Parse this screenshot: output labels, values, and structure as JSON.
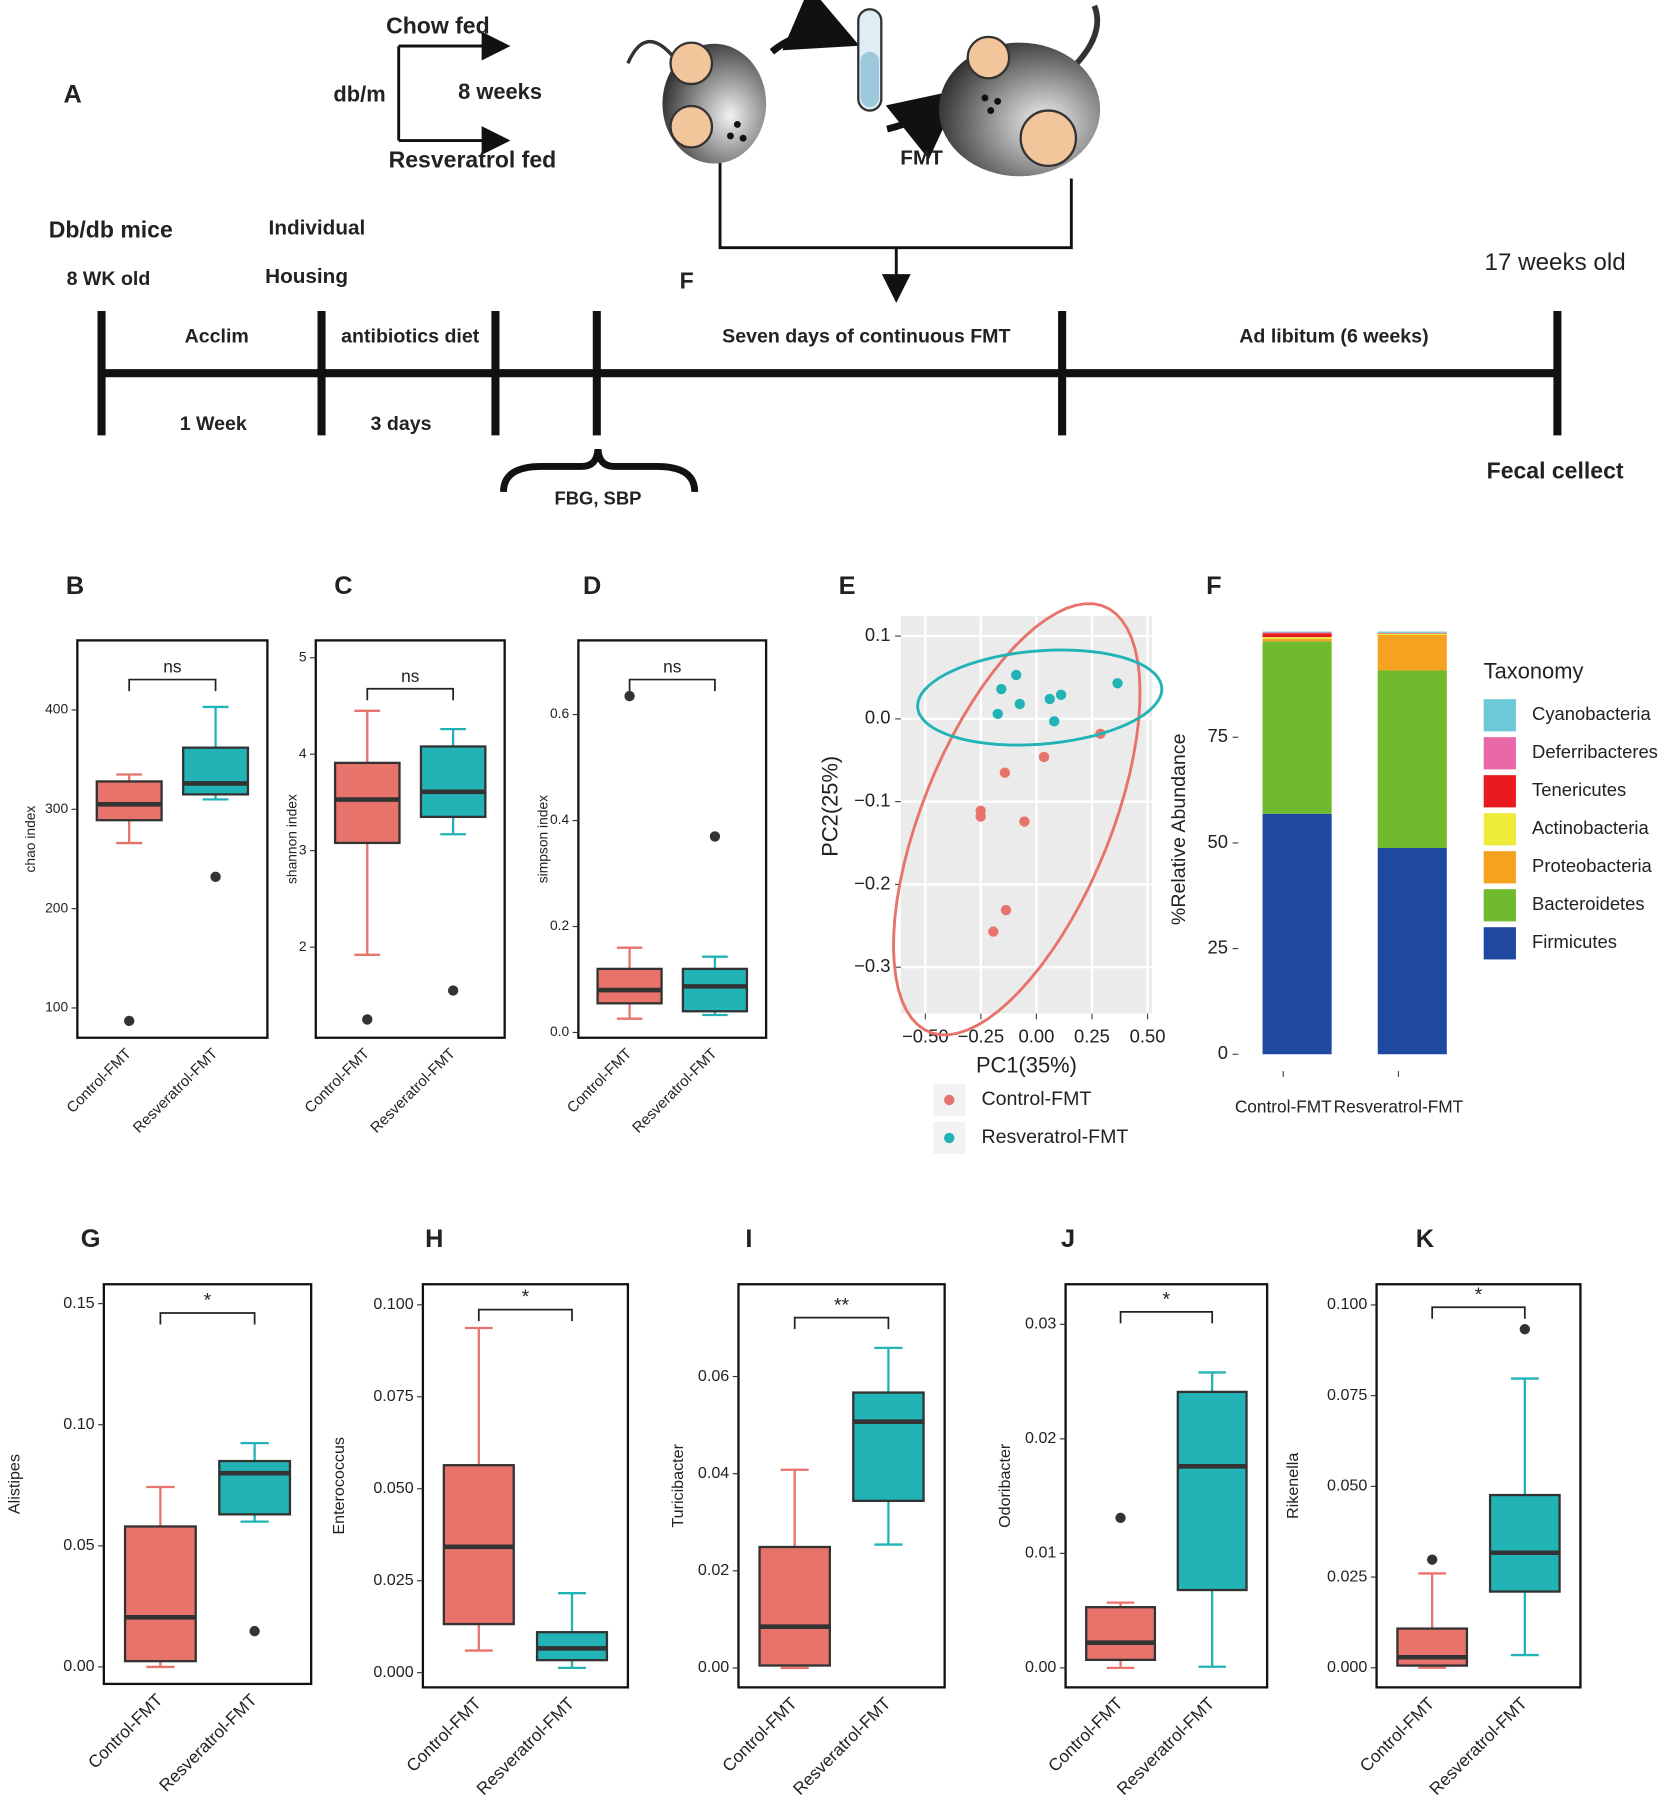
{
  "diagram": {
    "panel": "A",
    "texts": [
      "Chow fed",
      "db/m",
      "8 weeks",
      "Resveratrol fed",
      "FMT",
      "Db/db mice",
      "Individual",
      "8 WK old",
      "Housing",
      "F",
      "17 weeks old",
      "Acclim",
      "antibiotics diet",
      "Seven days of continuous FMT",
      "Ad libitum (6 weeks)",
      "1 Week",
      "3 days",
      "FBG,  SBP",
      "Fecal cellect"
    ]
  },
  "chart_data": [
    {
      "type": "box",
      "panel": "B",
      "ylabel": "chao index",
      "categories": [
        "Control-FMT",
        "Resveratrol-FMT"
      ],
      "colors": [
        "#e8736b",
        "#21b3b6"
      ],
      "boxes": [
        {
          "whislo": 266,
          "q1": 289,
          "med": 305,
          "q3": 328,
          "whishi": 335,
          "fliers": [
            87
          ]
        },
        {
          "whislo": 310,
          "q1": 315,
          "med": 326,
          "q3": 362,
          "whishi": 403,
          "fliers": [
            232
          ]
        }
      ],
      "ylim": [
        70,
        470
      ],
      "yticks": [
        100,
        200,
        300,
        400
      ],
      "annotation": "ns"
    },
    {
      "type": "box",
      "panel": "C",
      "ylabel": "shannon index",
      "categories": [
        "Control-FMT",
        "Resveratrol-FMT"
      ],
      "colors": [
        "#e8736b",
        "#21b3b6"
      ],
      "boxes": [
        {
          "whislo": 1.92,
          "q1": 3.08,
          "med": 3.53,
          "q3": 3.91,
          "whishi": 4.45,
          "fliers": [
            1.25
          ]
        },
        {
          "whislo": 3.17,
          "q1": 3.35,
          "med": 3.61,
          "q3": 4.08,
          "whishi": 4.26,
          "fliers": [
            1.55
          ]
        }
      ],
      "ylim": [
        1.06,
        5.18
      ],
      "yticks": [
        2,
        3,
        4,
        5
      ],
      "annotation": "ns"
    },
    {
      "type": "box",
      "panel": "D",
      "ylabel": "simpson index",
      "categories": [
        "Control-FMT",
        "Resveratrol-FMT"
      ],
      "colors": [
        "#e8736b",
        "#21b3b6"
      ],
      "boxes": [
        {
          "whislo": 0.026,
          "q1": 0.055,
          "med": 0.08,
          "q3": 0.12,
          "whishi": 0.16,
          "fliers": [
            0.635
          ]
        },
        {
          "whislo": 0.033,
          "q1": 0.04,
          "med": 0.087,
          "q3": 0.12,
          "whishi": 0.143,
          "fliers": [
            0.37
          ]
        }
      ],
      "ylim": [
        -0.01,
        0.74
      ],
      "yticks": [
        {
          "value": 0,
          "label": "0.0"
        },
        0.2,
        0.4,
        0.6
      ],
      "annotation": "ns"
    },
    {
      "type": "scatter",
      "panel": "E",
      "xlabel": "PC1(35%)",
      "ylabel": "PC2(25%)",
      "ellipse": true,
      "grid": true,
      "series": [
        {
          "name": "Control-FMT",
          "color": "#e8736b",
          "x": [
            0.288,
            0.034,
            -0.142,
            -0.251,
            -0.251,
            -0.054,
            -0.137,
            -0.194
          ],
          "y": [
            -0.018,
            -0.046,
            -0.065,
            -0.111,
            -0.118,
            -0.124,
            -0.231,
            -0.257
          ]
        },
        {
          "name": "Resveratrol-FMT",
          "color": "#21b3b6",
          "x": [
            -0.158,
            -0.091,
            -0.174,
            -0.075,
            0.06,
            0.111,
            0.08,
            0.365
          ],
          "y": [
            0.036,
            0.053,
            0.006,
            0.018,
            0.024,
            0.029,
            -0.003,
            0.043
          ]
        }
      ],
      "xlim": [
        -0.61,
        0.52
      ],
      "ylim": [
        -0.356,
        0.124
      ],
      "xticks": [
        {
          "value": -0.5,
          "label": "−0.50"
        },
        {
          "value": -0.25,
          "label": "−0.25"
        },
        {
          "value": 0,
          "label": "0.00"
        },
        0.25,
        {
          "value": 0.5,
          "label": "0.50"
        }
      ],
      "yticks": [
        0.1,
        {
          "value": 0,
          "label": "0.0"
        },
        {
          "value": -0.1,
          "label": "−0.1"
        },
        {
          "value": -0.2,
          "label": "−0.2"
        },
        {
          "value": -0.3,
          "label": "−0.3"
        }
      ]
    },
    {
      "type": "stacked_bar",
      "panel": "F",
      "ylabel": "%Relative Abundance",
      "legend_title": "Taxonomy",
      "categories": [
        "Control-FMT",
        "Resveratrol-FMT"
      ],
      "series": [
        {
          "name": "Firmicutes",
          "color": "#1f49a0",
          "values": [
            56.9,
            48.8
          ]
        },
        {
          "name": "Bacteroidetes",
          "color": "#6fbb2d",
          "values": [
            40.8,
            42.0
          ]
        },
        {
          "name": "Proteobacteria",
          "color": "#f4a21f",
          "values": [
            0.6,
            8.4
          ]
        },
        {
          "name": "Actinobacteria",
          "color": "#eeeb3a",
          "values": [
            0.4,
            0.3
          ]
        },
        {
          "name": "Tenericutes",
          "color": "#e8191f",
          "values": [
            0.9,
            0.1
          ]
        },
        {
          "name": "Deferribacteres",
          "color": "#e868a8",
          "values": [
            0.2,
            0.1
          ]
        },
        {
          "name": "Cyanobacteria",
          "color": "#6ec9d6",
          "values": [
            0.2,
            0.3
          ]
        }
      ],
      "ylim": [
        -4,
        105
      ],
      "yticks": [
        0,
        25,
        50,
        75
      ]
    },
    {
      "type": "box",
      "panel": "G",
      "ylabel": "Alistipes",
      "categories": [
        "Control-FMT",
        "Resveratrol-FMT"
      ],
      "colors": [
        "#e8736b",
        "#21b3b6"
      ],
      "boxes": [
        {
          "whislo": 0,
          "q1": 0.0024,
          "med": 0.0205,
          "q3": 0.058,
          "whishi": 0.0743,
          "fliers": []
        },
        {
          "whislo": 0.06,
          "q1": 0.063,
          "med": 0.08,
          "q3": 0.085,
          "whishi": 0.0924,
          "fliers": [
            0.0148
          ]
        }
      ],
      "ylim": [
        -0.007,
        0.158
      ],
      "yticks": [
        {
          "value": 0,
          "label": "0.00"
        },
        0.05,
        {
          "value": 0.1,
          "label": "0.10"
        },
        0.15
      ],
      "annotation": "*"
    },
    {
      "type": "box",
      "panel": "H",
      "ylabel": "Enterococcus",
      "categories": [
        "Control-FMT",
        "Resveratrol-FMT"
      ],
      "colors": [
        "#e8736b",
        "#21b3b6"
      ],
      "boxes": [
        {
          "whislo": 0.006,
          "q1": 0.0132,
          "med": 0.0342,
          "q3": 0.0564,
          "whishi": 0.0937,
          "fliers": []
        },
        {
          "whislo": 0.0013,
          "q1": 0.0034,
          "med": 0.0066,
          "q3": 0.011,
          "whishi": 0.0216,
          "fliers": []
        }
      ],
      "ylim": [
        -0.004,
        0.1056
      ],
      "yticks": [
        {
          "value": 0,
          "label": "0.000"
        },
        0.025,
        {
          "value": 0.05,
          "label": "0.050"
        },
        0.075,
        {
          "value": 0.1,
          "label": "0.100"
        }
      ],
      "annotation": "*"
    },
    {
      "type": "box",
      "panel": "I",
      "ylabel": "Turicibacter",
      "categories": [
        "Control-FMT",
        "Resveratrol-FMT"
      ],
      "colors": [
        "#e8736b",
        "#21b3b6"
      ],
      "boxes": [
        {
          "whislo": 0,
          "q1": 0.0005,
          "med": 0.0085,
          "q3": 0.0249,
          "whishi": 0.0408,
          "fliers": []
        },
        {
          "whislo": 0.0254,
          "q1": 0.0344,
          "med": 0.0507,
          "q3": 0.0567,
          "whishi": 0.0659,
          "fliers": []
        }
      ],
      "ylim": [
        -0.004,
        0.079
      ],
      "yticks": [
        {
          "value": 0,
          "label": "0.00"
        },
        0.02,
        0.04,
        0.06
      ],
      "annotation": "**"
    },
    {
      "type": "box",
      "panel": "J",
      "ylabel": "Odoribacter",
      "categories": [
        "Control-FMT",
        "Resveratrol-FMT"
      ],
      "colors": [
        "#e8736b",
        "#21b3b6"
      ],
      "boxes": [
        {
          "whislo": 0,
          "q1": 0.0007,
          "med": 0.0022,
          "q3": 0.0053,
          "whishi": 0.0057,
          "fliers": [
            0.0131
          ]
        },
        {
          "whislo": 0.0001,
          "q1": 0.0068,
          "med": 0.0176,
          "q3": 0.0241,
          "whishi": 0.0258,
          "fliers": []
        }
      ],
      "ylim": [
        -0.0017,
        0.0335
      ],
      "yticks": [
        {
          "value": 0,
          "label": "0.00"
        },
        0.01,
        0.02,
        0.03
      ],
      "annotation": "*"
    },
    {
      "type": "box",
      "panel": "K",
      "ylabel": "Rikenella",
      "categories": [
        "Control-FMT",
        "Resveratrol-FMT"
      ],
      "colors": [
        "#e8736b",
        "#21b3b6"
      ],
      "boxes": [
        {
          "whislo": 0,
          "q1": 0.0006,
          "med": 0.0029,
          "q3": 0.0108,
          "whishi": 0.026,
          "fliers": [
            0.0298
          ]
        },
        {
          "whislo": 0.0035,
          "q1": 0.021,
          "med": 0.0317,
          "q3": 0.0476,
          "whishi": 0.0797,
          "fliers": [
            0.0933
          ]
        }
      ],
      "ylim": [
        -0.0054,
        0.1057
      ],
      "yticks": [
        {
          "value": 0,
          "label": "0.000"
        },
        0.025,
        {
          "value": 0.05,
          "label": "0.050"
        },
        0.075,
        {
          "value": 0.1,
          "label": "0.100"
        }
      ],
      "annotation": "*"
    }
  ]
}
